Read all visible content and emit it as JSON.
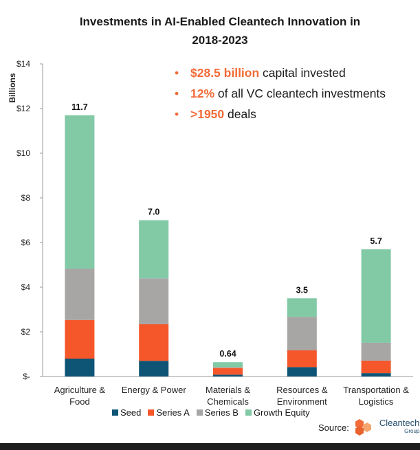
{
  "chart_data": {
    "type": "bar",
    "stacked": true,
    "title_lines": [
      "Investments in AI-Enabled Cleantech Innovation in",
      "2018-2023"
    ],
    "ylabel": "Billions",
    "ylim": [
      0,
      14
    ],
    "yticks": [
      0,
      2,
      4,
      6,
      8,
      10,
      12,
      14
    ],
    "ytick_labels": [
      "$-",
      "$2",
      "$4",
      "$6",
      "$8",
      "$10",
      "$12",
      "$14"
    ],
    "categories": [
      [
        "Agriculture &",
        "Food"
      ],
      [
        "Energy & Power"
      ],
      [
        "Materials &",
        "Chemicals"
      ],
      [
        "Resources &",
        "Environment"
      ],
      [
        "Transportation &",
        "Logistics"
      ]
    ],
    "series": [
      {
        "name": "Seed",
        "color": "#0d5475",
        "values": [
          0.8,
          0.7,
          0.08,
          0.42,
          0.15
        ]
      },
      {
        "name": "Series A",
        "color": "#f5562a",
        "values": [
          1.73,
          1.64,
          0.3,
          0.75,
          0.56
        ]
      },
      {
        "name": "Series B",
        "color": "#a8a5a5",
        "values": [
          2.3,
          2.05,
          0.04,
          1.5,
          0.8
        ]
      },
      {
        "name": "Growth Equity",
        "color": "#82c9a6",
        "values": [
          6.87,
          2.61,
          0.22,
          0.83,
          4.19
        ]
      }
    ],
    "totals": [
      "11.7",
      "7.0",
      "0.64",
      "3.5",
      "5.7"
    ],
    "grid": false,
    "legend_position": "bottom"
  },
  "callouts": {
    "items": [
      {
        "bullet": "•",
        "highlight": "$28.5 billion",
        "rest": " capital invested"
      },
      {
        "bullet": "•",
        "highlight": "12%",
        "rest": " of all VC cleantech investments"
      },
      {
        "bullet": "•",
        "highlight": ">1950",
        "rest": " deals"
      }
    ]
  },
  "source": {
    "label": "Source:",
    "logo_name": "Cleantech",
    "logo_sub": "Group",
    "logo_colors": [
      "#f26b38",
      "#f7a56e",
      "#e8622e"
    ]
  }
}
